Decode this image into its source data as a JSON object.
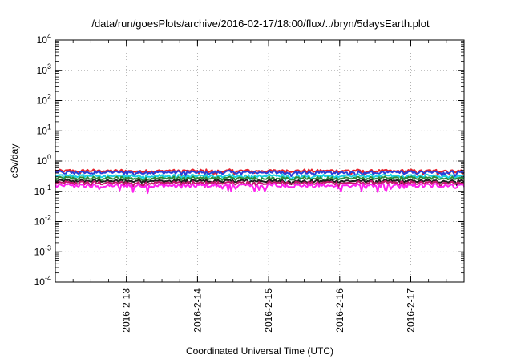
{
  "chart_data": {
    "type": "line",
    "title": "/data/run/goesPlots/archive/2016-02-17/18:00/flux/../bryn/5daysEarth.plot",
    "xlabel": "Coordinated Universal Time (UTC)",
    "ylabel": "cSv/day",
    "yscale": "log",
    "ylim": [
      0.0001,
      10000
    ],
    "y_ticks": [
      {
        "base": "10",
        "exp": "-4",
        "value": 0.0001
      },
      {
        "base": "10",
        "exp": "-3",
        "value": 0.001
      },
      {
        "base": "10",
        "exp": "-2",
        "value": 0.01
      },
      {
        "base": "10",
        "exp": "-1",
        "value": 0.1
      },
      {
        "base": "10",
        "exp": "0",
        "value": 1
      },
      {
        "base": "10",
        "exp": "1",
        "value": 10
      },
      {
        "base": "10",
        "exp": "2",
        "value": 100
      },
      {
        "base": "10",
        "exp": "3",
        "value": 1000
      },
      {
        "base": "10",
        "exp": "4",
        "value": 10000
      }
    ],
    "xlim": [
      "2016-02-12 00:00",
      "2016-02-17 18:00"
    ],
    "x_ticks": [
      "2016-2-13",
      "2016-2-14",
      "2016-2-15",
      "2016-2-16",
      "2016-2-17"
    ],
    "grid": true,
    "series": [
      {
        "color": "#e8202a",
        "base": 0.47,
        "amp": 0.07
      },
      {
        "color": "#2a3fd8",
        "base": 0.42,
        "amp": 0.07
      },
      {
        "color": "#18d0e0",
        "base": 0.32,
        "amp": 0.05
      },
      {
        "color": "#2e8b3a",
        "base": 0.27,
        "amp": 0.04
      },
      {
        "color": "#1e1e1e",
        "base": 0.22,
        "amp": 0.03
      },
      {
        "color": "#c0186a",
        "base": 0.19,
        "amp": 0.03
      },
      {
        "color": "#ff22ee",
        "base": 0.155,
        "amp": 0.035
      }
    ]
  }
}
